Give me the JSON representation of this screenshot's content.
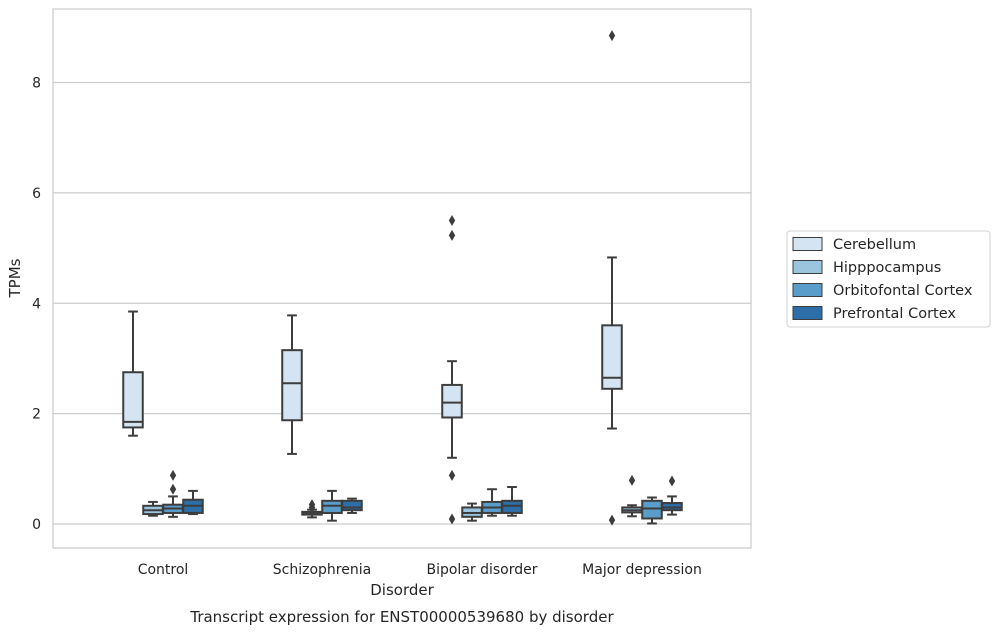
{
  "chart_data": {
    "type": "box",
    "caption": "Transcript expression for ENST00000539680 by disorder",
    "xlabel": "Disorder",
    "ylabel": "TPMs",
    "categories": [
      "Control",
      "Schizophrenia",
      "Bipolar disorder",
      "Major depression"
    ],
    "ylim": [
      -0.42,
      9.3
    ],
    "yticks": [
      0,
      2,
      4,
      6,
      8
    ],
    "grid": true,
    "legend_position": "right",
    "series": [
      {
        "name": "Cerebellum",
        "color": "#d5e4f2",
        "boxes": [
          {
            "whislo": 1.6,
            "q1": 1.75,
            "med": 1.85,
            "q3": 2.75,
            "whishi": 3.85,
            "fliers": []
          },
          {
            "whislo": 1.27,
            "q1": 1.88,
            "med": 2.55,
            "q3": 3.15,
            "whishi": 3.78,
            "fliers": []
          },
          {
            "whislo": 1.2,
            "q1": 1.93,
            "med": 2.2,
            "q3": 2.52,
            "whishi": 2.95,
            "fliers": [
              5.5,
              5.23,
              0.88,
              0.09
            ]
          },
          {
            "whislo": 1.73,
            "q1": 2.45,
            "med": 2.65,
            "q3": 3.6,
            "whishi": 4.83,
            "fliers": [
              8.85,
              0.07
            ]
          }
        ]
      },
      {
        "name": "Hipppocampus",
        "color": "#9bc4de",
        "boxes": [
          {
            "whislo": 0.15,
            "q1": 0.18,
            "med": 0.25,
            "q3": 0.33,
            "whishi": 0.4,
            "fliers": []
          },
          {
            "whislo": 0.12,
            "q1": 0.17,
            "med": 0.19,
            "q3": 0.22,
            "whishi": 0.26,
            "fliers": [
              0.3,
              0.35
            ]
          },
          {
            "whislo": 0.06,
            "q1": 0.13,
            "med": 0.2,
            "q3": 0.3,
            "whishi": 0.37,
            "fliers": []
          },
          {
            "whislo": 0.14,
            "q1": 0.21,
            "med": 0.25,
            "q3": 0.3,
            "whishi": 0.34,
            "fliers": [
              0.79
            ]
          }
        ]
      },
      {
        "name": "Orbitofontal Cortex",
        "color": "#5a9dcb",
        "boxes": [
          {
            "whislo": 0.13,
            "q1": 0.2,
            "med": 0.28,
            "q3": 0.35,
            "whishi": 0.5,
            "fliers": [
              0.88,
              0.63
            ]
          },
          {
            "whislo": 0.06,
            "q1": 0.2,
            "med": 0.33,
            "q3": 0.42,
            "whishi": 0.6,
            "fliers": []
          },
          {
            "whislo": 0.15,
            "q1": 0.2,
            "med": 0.3,
            "q3": 0.4,
            "whishi": 0.63,
            "fliers": []
          },
          {
            "whislo": 0.01,
            "q1": 0.1,
            "med": 0.28,
            "q3": 0.42,
            "whishi": 0.48,
            "fliers": []
          }
        ]
      },
      {
        "name": "Prefrontal Cortex",
        "color": "#2b6ea8",
        "boxes": [
          {
            "whislo": 0.18,
            "q1": 0.2,
            "med": 0.33,
            "q3": 0.44,
            "whishi": 0.6,
            "fliers": []
          },
          {
            "whislo": 0.2,
            "q1": 0.25,
            "med": 0.3,
            "q3": 0.42,
            "whishi": 0.46,
            "fliers": []
          },
          {
            "whislo": 0.15,
            "q1": 0.2,
            "med": 0.33,
            "q3": 0.42,
            "whishi": 0.67,
            "fliers": []
          },
          {
            "whislo": 0.17,
            "q1": 0.25,
            "med": 0.3,
            "q3": 0.38,
            "whishi": 0.5,
            "fliers": [
              0.78
            ]
          }
        ]
      }
    ]
  }
}
